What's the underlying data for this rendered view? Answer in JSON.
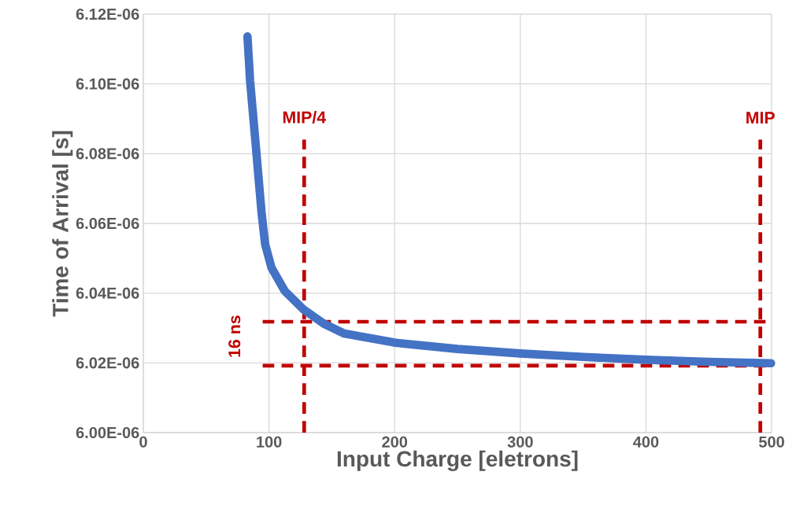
{
  "chart_data": {
    "type": "line",
    "xlabel": "Input Charge [eletrons]",
    "ylabel": "Time of Arrival [s]",
    "x": [
      82.9,
      85,
      89.6,
      94.1,
      96.9,
      102,
      112.6,
      127.2,
      143.8,
      160,
      200,
      250,
      300,
      350,
      400,
      450,
      499.5
    ],
    "series": [
      {
        "color": "#4472c4",
        "values": [
          6.1136e-06,
          6.1008e-06,
          6.0819e-06,
          6.0631e-06,
          6.0541e-06,
          6.0473e-06,
          6.0406e-06,
          6.0354e-06,
          6.0312e-06,
          6.0284e-06,
          6.0258e-06,
          6.024e-06,
          6.0227e-06,
          6.0217e-06,
          6.0209e-06,
          6.0203e-06,
          6.0199e-06
        ]
      }
    ],
    "xlim": [
      0,
      500
    ],
    "xticks": [
      0,
      100,
      200,
      300,
      400,
      500
    ],
    "ylim": [
      6e-06,
      6.12e-06
    ],
    "yticks": [
      {
        "value": 6e-06,
        "label": "6.00E-06"
      },
      {
        "value": 6.02e-06,
        "label": "6.02E-06"
      },
      {
        "value": 6.04e-06,
        "label": "6.04E-06"
      },
      {
        "value": 6.06e-06,
        "label": "6.06E-06"
      },
      {
        "value": 6.08e-06,
        "label": "6.08E-06"
      },
      {
        "value": 6.1e-06,
        "label": "6.10E-06"
      },
      {
        "value": 6.12e-06,
        "label": "6.12E-06"
      }
    ],
    "grid": true,
    "legend": false,
    "marker": "none",
    "line_style": "solid",
    "ref_lines": [
      {
        "axis": "x",
        "value": 128,
        "label": "MIP/4",
        "color": "#c00000",
        "line_style": "dashed"
      },
      {
        "axis": "x",
        "value": 491,
        "label": "MIP",
        "color": "#c00000",
        "line_style": "dashed"
      },
      {
        "axis": "y",
        "value": 6.0318e-06,
        "color": "#c00000",
        "line_style": "dashed"
      },
      {
        "axis": "y",
        "value": 6.0192e-06,
        "color": "#c00000",
        "line_style": "dashed"
      }
    ],
    "annotations": [
      "16 ns"
    ]
  }
}
